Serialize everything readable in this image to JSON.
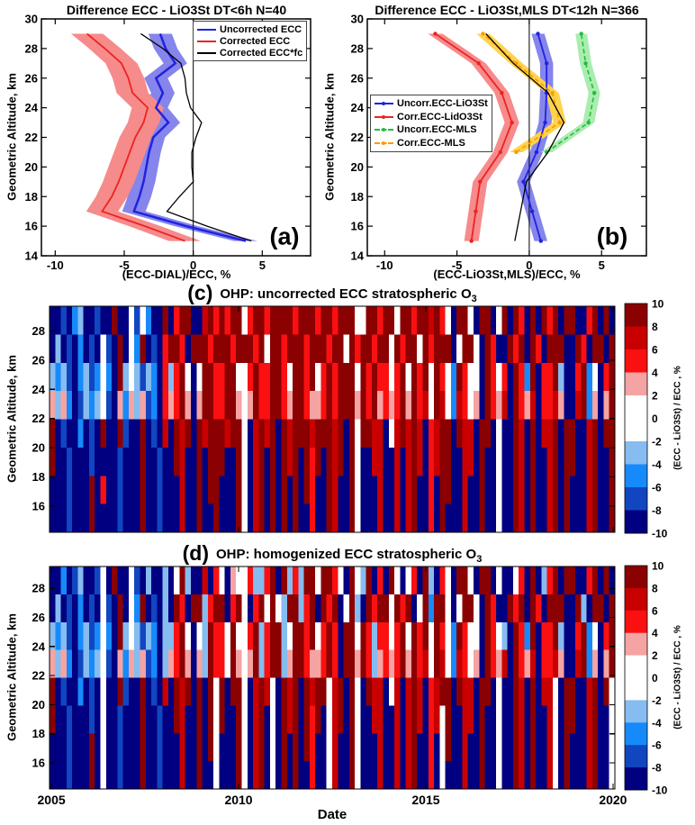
{
  "background": "#ffffff",
  "chart_data": [
    {
      "id": "a",
      "type": "line",
      "panel_label": "(a)",
      "title": "Difference ECC - LiO3St DT<6h N=40",
      "xlabel": "(ECC-DIAL)/ECC, %",
      "ylabel": "Geometric Altitude, km",
      "xlim": [
        -11,
        8.5
      ],
      "ylim": [
        14,
        30
      ],
      "xticks": [
        -10,
        -5,
        0,
        5
      ],
      "yticks": [
        14,
        16,
        18,
        20,
        22,
        24,
        26,
        28,
        30
      ],
      "zero_line": true,
      "legend_position": "top-right",
      "altitudes": [
        15,
        16,
        17,
        18,
        19,
        20,
        21,
        22,
        23,
        24,
        25,
        26,
        27,
        28,
        29
      ],
      "series": [
        {
          "name": "Uncorrected ECC",
          "color": "#2222DD",
          "band_color": "#8585EC",
          "band": 0.85,
          "lw": 2.5,
          "dash": false,
          "marker": false,
          "values": [
            3.8,
            -0.5,
            -4.3,
            -3.9,
            -3.6,
            -3.4,
            -3.2,
            -2.9,
            -1.8,
            -2.7,
            -2.2,
            -2.7,
            -1.3,
            -2.0,
            -2.4
          ]
        },
        {
          "name": "Corrected ECC",
          "color": "#EE2222",
          "band_color": "#F68B8B",
          "band": 1.15,
          "lw": 1.8,
          "dash": false,
          "marker": false,
          "values": [
            -0.6,
            -3.5,
            -6.6,
            -5.9,
            -5.4,
            -5.0,
            -4.6,
            -4.2,
            -3.6,
            -3.3,
            -4.4,
            -4.7,
            -5.2,
            -6.4,
            -7.7
          ]
        },
        {
          "name": "Corrected ECC*fc",
          "color": "#000000",
          "band_color": "none",
          "band": 0,
          "lw": 1.3,
          "dash": false,
          "marker": false,
          "values": [
            4.2,
            1.0,
            -1.9,
            -1.0,
            0.0,
            -0.1,
            -0.1,
            0.2,
            0.6,
            -0.2,
            -0.5,
            -0.6,
            -0.9,
            -2.2,
            -3.8
          ]
        }
      ]
    },
    {
      "id": "b",
      "type": "line",
      "panel_label": "(b)",
      "title": "Difference ECC - LiO3St,MLS DT<12h N=366",
      "xlabel": "(ECC-LiO3St,MLS)/ECC, %",
      "ylabel": "Geometric Altitude, km",
      "xlim": [
        -11.2,
        8.1
      ],
      "ylim": [
        14,
        30
      ],
      "xticks": [
        -10,
        -5,
        0,
        5
      ],
      "yticks": [
        14,
        16,
        18,
        20,
        22,
        24,
        26,
        28,
        30
      ],
      "zero_line": true,
      "legend_position": "middle-left",
      "altitudes": [
        15,
        17,
        19,
        21,
        23,
        25,
        27,
        29
      ],
      "series": [
        {
          "name": "Uncorr.ECC-LiO3St",
          "color": "#2222DD",
          "band_color": "#8585EC",
          "band": 0.45,
          "lw": 1.8,
          "dash": false,
          "marker": true,
          "values": [
            0.8,
            0.2,
            -0.4,
            0.5,
            1.1,
            1.2,
            1.2,
            0.6
          ]
        },
        {
          "name": "Corr.ECC-LidO3St",
          "color": "#EE2222",
          "band_color": "#F68B8B",
          "band": 0.5,
          "lw": 1.8,
          "dash": false,
          "marker": true,
          "values": [
            -4.0,
            -3.7,
            -3.4,
            -2.0,
            -1.2,
            -1.9,
            -3.5,
            -6.5
          ]
        },
        {
          "name": "Uncorr.ECC-MLS",
          "color": "#22BB44",
          "band_color": "#AAEDAF",
          "band": 0.4,
          "lw": 1.6,
          "dash": true,
          "marker": true,
          "values": [
            null,
            null,
            null,
            1.2,
            4.1,
            4.5,
            3.9,
            3.6
          ]
        },
        {
          "name": "Corr.ECC-MLS",
          "color": "#FF9900",
          "band_color": "#FFD34D",
          "band": 0.45,
          "lw": 1.6,
          "dash": true,
          "marker": true,
          "values": [
            null,
            null,
            null,
            -0.9,
            2.1,
            1.6,
            -0.9,
            -3.2
          ]
        },
        {
          "name": "",
          "color": "#000000",
          "band_color": "none",
          "band": 0,
          "lw": 1.3,
          "dash": false,
          "marker": false,
          "hidden_in_legend": true,
          "values": [
            -1.0,
            -0.6,
            -0.2,
            1.3,
            2.4,
            1.3,
            -1.1,
            -3.0
          ]
        }
      ]
    },
    {
      "id": "c",
      "type": "heatmap",
      "panel_label": "(c)",
      "title": "OHP: uncorrected ECC stratospheric O",
      "title_sub": "3",
      "ylabel": "Geometric Altitude, km",
      "yticks": [
        16,
        18,
        20,
        22,
        24,
        26,
        28
      ],
      "ylim": [
        14.2,
        29.7
      ],
      "x_range": [
        2004.95,
        2020.05
      ],
      "xticks": [
        2010,
        2015,
        2020
      ],
      "xtick_labels": [],
      "value_bins": [
        -10,
        -8,
        -6,
        -4,
        -2,
        0,
        2,
        4,
        6,
        8,
        10
      ],
      "palette": [
        "#000080",
        "#1146C0",
        "#168AFA",
        "#86BCF0",
        "#FFFFFF",
        "#FFFFFF",
        "#F5A3A3",
        "#FA1010",
        "#C80000",
        "#8B0000"
      ],
      "colorbar": {
        "label": "(ECC - LiO3St) / ECC , %",
        "ticks": [
          10,
          8,
          6,
          4,
          2,
          0,
          -2,
          -4,
          -6,
          -8,
          -10
        ]
      },
      "rows": [
        "0010230010090041520090799008979799579979999799979979994599799599799897409940990590970909790990079090",
        "0301020104109052901079970999799979997959979997999799497997995979949799904995097009790970999009709909",
        "3231023124209353132073795059977995479779975997957979995979775795979497429745097570972907793007925079",
        "6362013234106263612076796069977996569779976997667979996979676796978498428746097680976807786008926069",
        "9010020109009100901080989098999899508989098999899989094998805898980789909880990500980908890990089099",
        "9001000100001000900100980090999009508909098909790989094008800808980789900880900500980900890990089009",
        "0001000907001000900100080090990009508909090909700980094000800808900709900800900500980900890900089009",
        "0001000900001000900100080090090009508909090900700980094000800808900709000800900500980900890900089009"
      ]
    },
    {
      "id": "d",
      "type": "heatmap",
      "panel_label": "(d)",
      "title": "OHP: homogenized ECC stratospheric O",
      "title_sub": "3",
      "ylabel": "Geometric Altitude, km",
      "xlabel": "Date",
      "yticks": [
        16,
        18,
        20,
        22,
        24,
        26,
        28
      ],
      "ylim": [
        14.2,
        29.5
      ],
      "x_range": [
        2004.95,
        2020.05
      ],
      "xticks": [
        2005,
        2010,
        2015,
        2020
      ],
      "xtick_labels": [
        "2005",
        "2010",
        "2015",
        "2020"
      ],
      "value_bins": [
        -10,
        -8,
        -6,
        -4,
        -2,
        0,
        2,
        4,
        6,
        8,
        10
      ],
      "palette": [
        "#000080",
        "#1146C0",
        "#168AFA",
        "#86BCF0",
        "#FFFFFF",
        "#FFFFFF",
        "#F5A3A3",
        "#FA1010",
        "#C80000",
        "#8B0000"
      ],
      "colorbar": {
        "label": "(ECC - LiO3St) / ECC , %",
        "ticks": [
          10,
          8,
          6,
          4,
          2,
          0,
          -2,
          -4,
          -6,
          -8,
          -10
        ]
      },
      "rows": [
        "0020130014090041030030493008075064573379093739949974094390709505709307409940990500470903790990079090",
        "0301020104109052901030970993799079407959539937909790493097995979049299404995097009790970999009309909",
        "3231023124209353132033795053977495479379935997957970995973775795979497429745097530972907793007925079",
        "6362013234106263612036796063977496569379936997667970996973676796978498428746097680976807786008926069",
        "9010020104009100901080989090949099508984098909899489094098805808980789909880990500980908840990089094",
        "9001000104001000900100980090949009508904098909790489094008800808980784900880900500980900840990089004",
        "0001000904001000900100080090940009508904090909700480094000800808900704900800900500980900840900089004",
        "0001000904001000900100080090040009508904090900700480094000800808900704000800900500980900840900089004"
      ]
    }
  ]
}
